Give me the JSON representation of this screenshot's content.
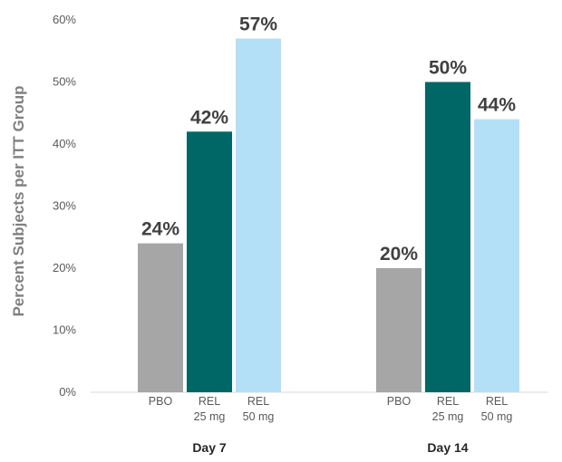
{
  "chart_data": {
    "type": "bar",
    "ylabel": "Percent Subjects per ITT Group",
    "ylim": [
      0,
      60
    ],
    "yticks": [
      "0%",
      "10%",
      "20%",
      "30%",
      "40%",
      "50%",
      "60%"
    ],
    "grid": false,
    "categories": [
      "Day 7",
      "Day 14"
    ],
    "series": [
      {
        "name": "PBO",
        "label_lines": [
          "PBO"
        ],
        "color": "#a6a6a6",
        "values": [
          24,
          20
        ],
        "value_labels": [
          "24%",
          "20%"
        ]
      },
      {
        "name": "REL 25 mg",
        "label_lines": [
          "REL",
          "25 mg"
        ],
        "color": "#006666",
        "values": [
          42,
          50
        ],
        "value_labels": [
          "42%",
          "50%"
        ]
      },
      {
        "name": "REL 50 mg",
        "label_lines": [
          "REL",
          "50 mg"
        ],
        "color": "#b3e0f7",
        "values": [
          57,
          44
        ],
        "value_labels": [
          "57%",
          "44%"
        ]
      }
    ]
  }
}
